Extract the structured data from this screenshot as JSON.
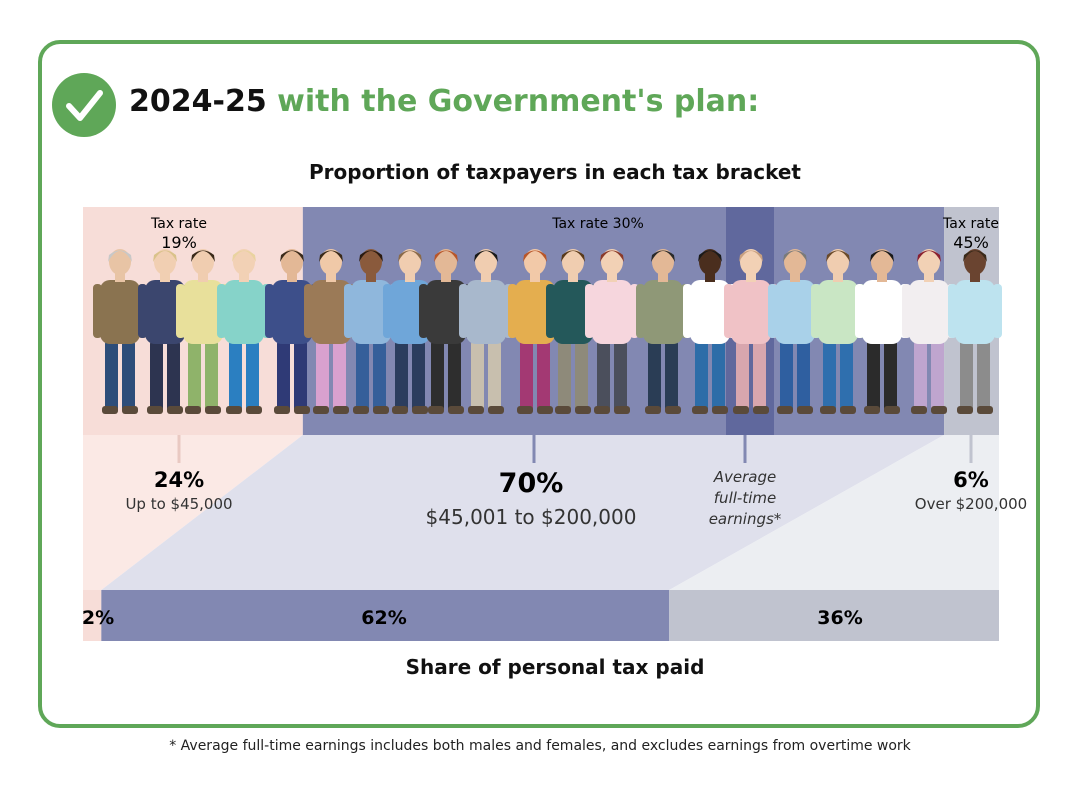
{
  "header": {
    "year": "2024-25",
    "plan_text": "with the Government's plan:"
  },
  "chart_data": {
    "type": "bar",
    "title": "Proportion of taxpayers in each tax bracket",
    "xlabel": "Share of personal tax paid",
    "brackets": [
      {
        "rate_label_1": "Tax rate",
        "rate_label_2": "19%",
        "percent_label": "24%",
        "range_label": "Up to $45,000",
        "taxpayers_share": 24,
        "tax_paid_share": 2,
        "tax_paid_label": "2%"
      },
      {
        "rate_label_1": "Tax rate 30%",
        "rate_label_2": "",
        "percent_label": "70%",
        "range_label": "$45,001 to $200,000",
        "taxpayers_share": 70,
        "tax_paid_share": 62,
        "tax_paid_label": "62%"
      },
      {
        "rate_label_1": "Tax rate",
        "rate_label_2": "45%",
        "percent_label": "6%",
        "range_label": "Over $200,000",
        "taxpayers_share": 6,
        "tax_paid_share": 36,
        "tax_paid_label": "36%"
      }
    ],
    "marker": {
      "label_lines": [
        "Average",
        "full-time",
        "earnings*"
      ]
    },
    "colors": {
      "low_bracket": "#f7ddd8",
      "mid_bracket": "#8288b2",
      "high_bracket": "#c0c3cf",
      "marker_band": "#60689d",
      "low_fan": "#fbe9e5",
      "mid_fan": "#dfe0ec",
      "high_fan": "#eceef2",
      "accent": "#5fa758"
    }
  },
  "footnote": "* Average full-time earnings includes both males and females, and excludes earnings from overtime work"
}
